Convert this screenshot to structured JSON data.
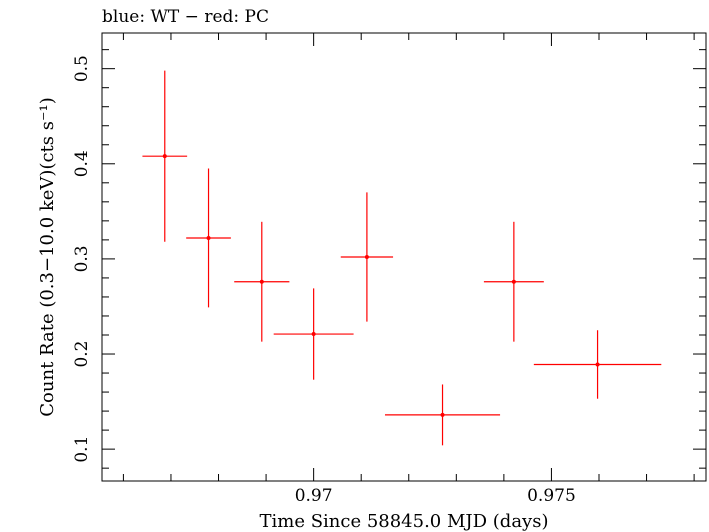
{
  "chart_data": {
    "type": "scatter",
    "title": "blue: WT − red: PC",
    "xlabel": "Time Since 58845.0 MJD (days)",
    "ylabel": "Count Rate (0.3−10.0 keV)(cts s⁻¹)",
    "xlim": [
      0.96555,
      0.97825
    ],
    "ylim": [
      0.0665,
      0.5375
    ],
    "x_ticks": [
      {
        "value": 0.97,
        "label": "0.97"
      },
      {
        "value": 0.975,
        "label": "0.975"
      }
    ],
    "y_ticks": [
      {
        "value": 0.1,
        "label": "0.1"
      },
      {
        "value": 0.2,
        "label": "0.2"
      },
      {
        "value": 0.3,
        "label": "0.3"
      },
      {
        "value": 0.4,
        "label": "0.4"
      },
      {
        "value": 0.5,
        "label": "0.5"
      }
    ],
    "grid": false,
    "series": [
      {
        "color": "#ff0000",
        "points": [
          {
            "x": 0.96687,
            "y": 0.408,
            "xerr": [
              0.00047,
              0.00047
            ],
            "yerr": [
              0.09,
              0.09
            ]
          },
          {
            "x": 0.96779,
            "y": 0.322,
            "xerr": [
              0.00047,
              0.00047
            ],
            "yerr": [
              0.073,
              0.073
            ]
          },
          {
            "x": 0.96891,
            "y": 0.276,
            "xerr": [
              0.00058,
              0.00058
            ],
            "yerr": [
              0.063,
              0.063
            ]
          },
          {
            "x": 0.97,
            "y": 0.221,
            "xerr": [
              0.00084,
              0.00084
            ],
            "yerr": [
              0.048,
              0.048
            ]
          },
          {
            "x": 0.97112,
            "y": 0.302,
            "xerr": [
              0.00055,
              0.00055
            ],
            "yerr": [
              0.068,
              0.068
            ]
          },
          {
            "x": 0.97271,
            "y": 0.136,
            "xerr": [
              0.00121,
              0.00121
            ],
            "yerr": [
              0.032,
              0.032
            ]
          },
          {
            "x": 0.97421,
            "y": 0.276,
            "xerr": [
              0.00063,
              0.00063
            ],
            "yerr": [
              0.063,
              0.063
            ]
          },
          {
            "x": 0.97597,
            "y": 0.189,
            "xerr": [
              0.00134,
              0.00134
            ],
            "yerr": [
              0.036,
              0.036
            ]
          }
        ]
      }
    ]
  }
}
